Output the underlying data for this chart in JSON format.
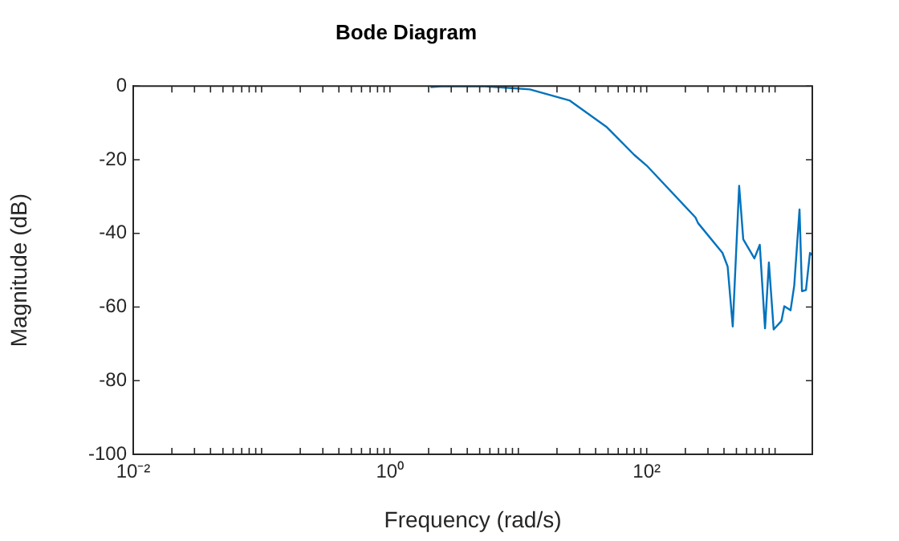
{
  "chart_data": {
    "type": "line",
    "title": "Bode Diagram",
    "xlabel": "Frequency (rad/s)",
    "ylabel": "Magnitude (dB)",
    "log": "x",
    "grid": false,
    "legend": false,
    "marker": "none",
    "line_style": "solid",
    "xlim": [
      0.01,
      1950
    ],
    "ylim": [
      -100,
      0
    ],
    "xticks": [
      {
        "value": 0.01,
        "label": "10⁻²"
      },
      {
        "value": 0.02,
        "label": null
      },
      {
        "value": 0.03,
        "label": null
      },
      {
        "value": 0.04,
        "label": null
      },
      {
        "value": 0.05,
        "label": null
      },
      {
        "value": 0.06,
        "label": null
      },
      {
        "value": 0.07,
        "label": null
      },
      {
        "value": 0.08,
        "label": null
      },
      {
        "value": 0.09,
        "label": null
      },
      {
        "value": 0.1,
        "label": null
      },
      {
        "value": 0.2,
        "label": null
      },
      {
        "value": 0.3,
        "label": null
      },
      {
        "value": 0.4,
        "label": null
      },
      {
        "value": 0.5,
        "label": null
      },
      {
        "value": 0.6,
        "label": null
      },
      {
        "value": 0.7,
        "label": null
      },
      {
        "value": 0.8,
        "label": null
      },
      {
        "value": 0.9,
        "label": null
      },
      {
        "value": 1,
        "label": "10⁰"
      },
      {
        "value": 2,
        "label": null
      },
      {
        "value": 3,
        "label": null
      },
      {
        "value": 4,
        "label": null
      },
      {
        "value": 5,
        "label": null
      },
      {
        "value": 6,
        "label": null
      },
      {
        "value": 7,
        "label": null
      },
      {
        "value": 8,
        "label": null
      },
      {
        "value": 9,
        "label": null
      },
      {
        "value": 10,
        "label": null
      },
      {
        "value": 20,
        "label": null
      },
      {
        "value": 30,
        "label": null
      },
      {
        "value": 40,
        "label": null
      },
      {
        "value": 50,
        "label": null
      },
      {
        "value": 60,
        "label": null
      },
      {
        "value": 70,
        "label": null
      },
      {
        "value": 80,
        "label": null
      },
      {
        "value": 90,
        "label": null
      },
      {
        "value": 100,
        "label": "10²"
      },
      {
        "value": 200,
        "label": null
      },
      {
        "value": 300,
        "label": null
      },
      {
        "value": 400,
        "label": null
      },
      {
        "value": 500,
        "label": null
      },
      {
        "value": 600,
        "label": null
      },
      {
        "value": 700,
        "label": null
      },
      {
        "value": 800,
        "label": null
      },
      {
        "value": 900,
        "label": null
      },
      {
        "value": 1000,
        "label": null
      }
    ],
    "yticks": [
      0,
      -20,
      -40,
      -60,
      -80,
      -100
    ],
    "series": [
      {
        "color": "#0072bd",
        "x": [
          2.07,
          2.5,
          5.2,
          12.3,
          25,
          49,
          80,
          100,
          240,
          251,
          389,
          427,
          468,
          525,
          565,
          690,
          760,
          835,
          895,
          975,
          1120,
          1180,
          1320,
          1410,
          1550,
          1620,
          1740,
          1870,
          1950
        ],
        "values": [
          -0.3,
          -0.1,
          0,
          -0.9,
          -3.9,
          -11.2,
          -18.7,
          -21.6,
          -35.7,
          -37.2,
          -45.3,
          -49,
          -65.3,
          -27.1,
          -41.6,
          -46.8,
          -43.1,
          -65.8,
          -47.9,
          -66.1,
          -63.8,
          -59.8,
          -60.9,
          -54.2,
          -33.5,
          -55.7,
          -55.4,
          -45.3,
          -46
        ]
      }
    ]
  }
}
